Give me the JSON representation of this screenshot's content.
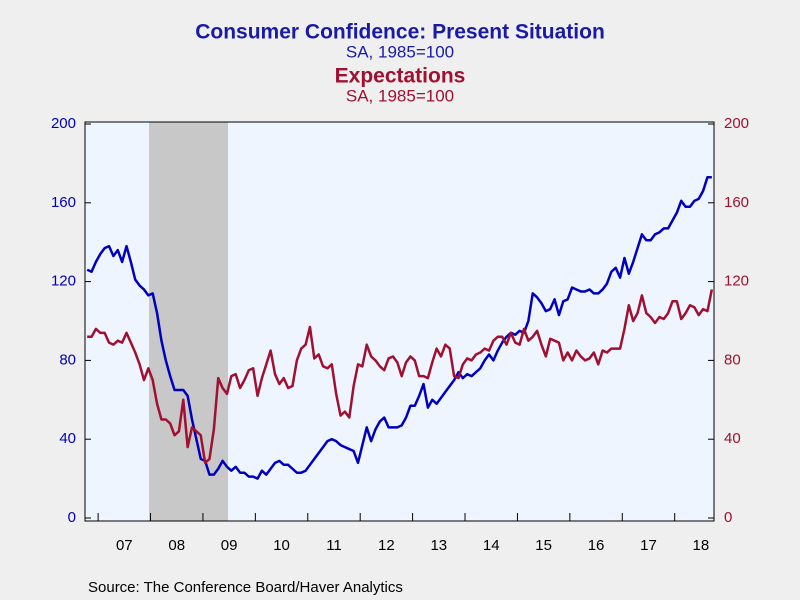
{
  "chart_data": {
    "type": "line",
    "series": [
      {
        "name": "Consumer Confidence: Present Situation",
        "subtitle": "SA, 1985=100",
        "color": "#0000c0",
        "axis": "y",
        "values": [
          126,
          125,
          130,
          134,
          137,
          138,
          133,
          136,
          130,
          138,
          130,
          121,
          118,
          116,
          113,
          114,
          104,
          90,
          80,
          72,
          65,
          65,
          65,
          62,
          50,
          40,
          30,
          29,
          22,
          22,
          25,
          29,
          26,
          24,
          26,
          23,
          23,
          21,
          21,
          20,
          24,
          22,
          25,
          28,
          29,
          27,
          27,
          25,
          23,
          23,
          24,
          27,
          30,
          33,
          36,
          39,
          40,
          39,
          37,
          36,
          35,
          34,
          28,
          37,
          46,
          39,
          45,
          49,
          51,
          46,
          46,
          46,
          47,
          51,
          57,
          57,
          62,
          68,
          56,
          60,
          58,
          61,
          64,
          67,
          70,
          74,
          71,
          73,
          72,
          74,
          76,
          80,
          83,
          80,
          85,
          89,
          92,
          94,
          93,
          95,
          94,
          100,
          114,
          112,
          109,
          105,
          106,
          111,
          103,
          110,
          111,
          117,
          116,
          115,
          115,
          116,
          114,
          114,
          116,
          119,
          125,
          127,
          122,
          132,
          124,
          130,
          137,
          144,
          141,
          141,
          144,
          145,
          147,
          147,
          151,
          155,
          161,
          158,
          158,
          161,
          162,
          166,
          173,
          173
        ]
      },
      {
        "name": "Expectations",
        "subtitle": "SA, 1985=100",
        "color": "#a01030",
        "axis": "y2",
        "values": [
          92,
          92,
          96,
          94,
          94,
          89,
          88,
          90,
          89,
          94,
          89,
          84,
          78,
          70,
          76,
          70,
          58,
          50,
          50,
          48,
          42,
          44,
          60,
          36,
          46,
          44,
          42,
          28,
          30,
          45,
          71,
          66,
          63,
          72,
          73,
          66,
          70,
          75,
          76,
          62,
          71,
          78,
          85,
          73,
          68,
          71,
          66,
          67,
          80,
          86,
          88,
          97,
          81,
          83,
          77,
          76,
          78,
          63,
          52,
          54,
          51,
          67,
          78,
          77,
          88,
          82,
          80,
          77,
          75,
          81,
          82,
          79,
          72,
          79,
          82,
          80,
          72,
          72,
          71,
          79,
          86,
          82,
          88,
          86,
          72,
          71,
          78,
          81,
          80,
          83,
          84,
          86,
          85,
          90,
          92,
          92,
          88,
          94,
          89,
          88,
          96,
          90,
          92,
          95,
          88,
          82,
          91,
          90,
          89,
          80,
          84,
          80,
          85,
          82,
          80,
          81,
          84,
          78,
          85,
          84,
          86,
          86,
          86,
          96,
          108,
          100,
          104,
          113,
          104,
          102,
          99,
          102,
          101,
          104,
          110,
          110,
          101,
          104,
          108,
          107,
          103,
          106,
          105,
          116
        ]
      }
    ],
    "categories": [
      null,
      null,
      null,
      null,
      null,
      null,
      null,
      null,
      "07",
      null,
      null,
      null,
      null,
      null,
      null,
      null,
      null,
      null,
      null,
      null,
      "08",
      null,
      null,
      null,
      null,
      null,
      null,
      null,
      null,
      null,
      null,
      null,
      "09",
      null,
      null,
      null,
      null,
      null,
      null,
      null,
      null,
      null,
      null,
      null,
      "10",
      null,
      null,
      null,
      null,
      null,
      null,
      null,
      null,
      null,
      null,
      null,
      "11",
      null,
      null,
      null,
      null,
      null,
      null,
      null,
      null,
      null,
      null,
      null,
      "12",
      null,
      null,
      null,
      null,
      null,
      null,
      null,
      null,
      null,
      null,
      null,
      "13",
      null,
      null,
      null,
      null,
      null,
      null,
      null,
      null,
      null,
      null,
      null,
      "14",
      null,
      null,
      null,
      null,
      null,
      null,
      null,
      null,
      null,
      null,
      null,
      "15",
      null,
      null,
      null,
      null,
      null,
      null,
      null,
      null,
      null,
      null,
      null,
      "16",
      null,
      null,
      null,
      null,
      null,
      null,
      null,
      null,
      null,
      null,
      null,
      "17",
      null,
      null,
      null,
      null,
      null,
      null,
      null,
      null,
      null,
      null,
      null,
      "18",
      null,
      null,
      null
    ],
    "ylim": [
      0,
      200
    ],
    "yticks": [
      0,
      40,
      80,
      120,
      160,
      200
    ],
    "y2lim": [
      0,
      200
    ],
    "y2ticks": [
      0,
      40,
      80,
      120,
      160,
      200
    ],
    "source": "Source:  The Conference Board/Haver Analytics"
  }
}
